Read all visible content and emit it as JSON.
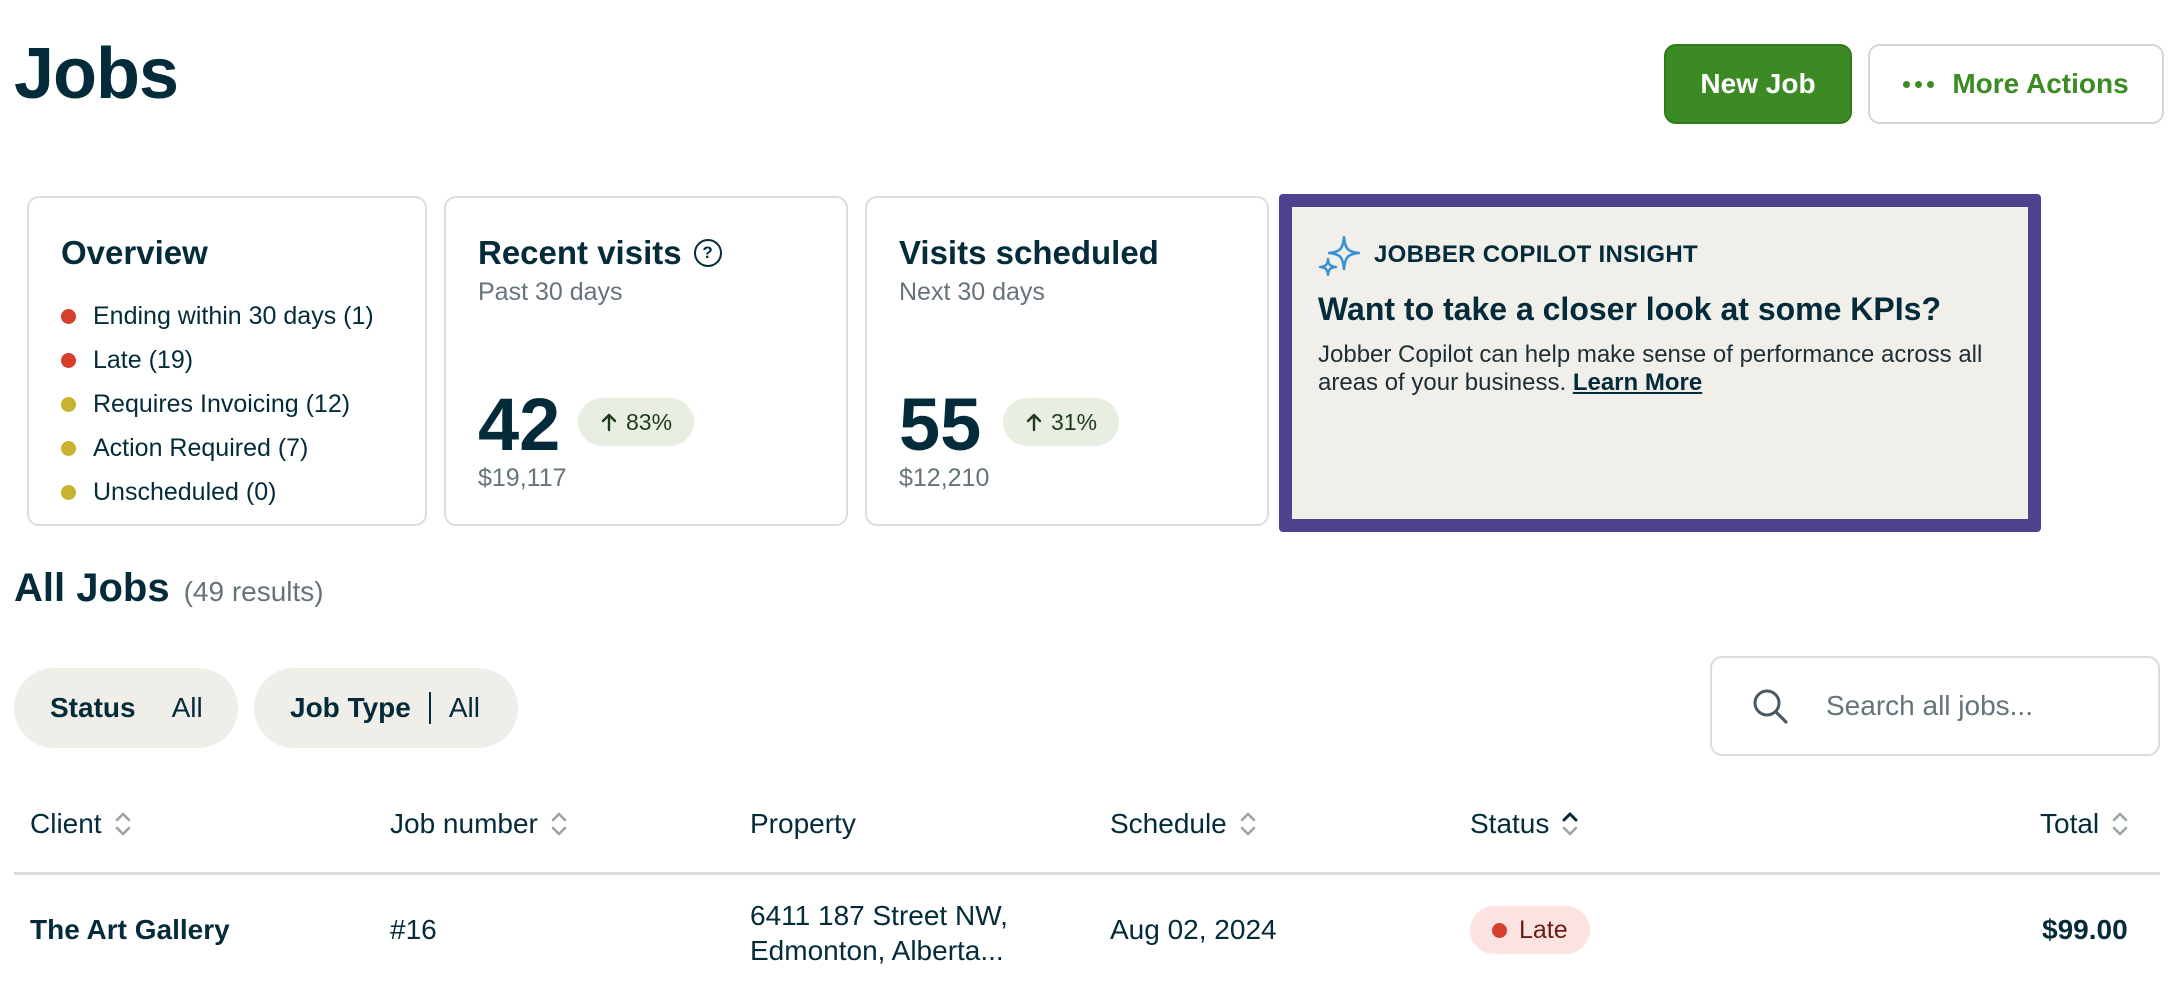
{
  "header": {
    "title": "Jobs",
    "new_job_label": "New Job",
    "more_actions_label": "More Actions"
  },
  "overview": {
    "title": "Overview",
    "items": [
      {
        "label": "Ending within 30 days (1)",
        "color": "#d63e2d"
      },
      {
        "label": "Late (19)",
        "color": "#d63e2d"
      },
      {
        "label": "Requires Invoicing (12)",
        "color": "#c9b22e"
      },
      {
        "label": "Action Required (7)",
        "color": "#c9b22e"
      },
      {
        "label": "Unscheduled (0)",
        "color": "#c9b22e"
      }
    ]
  },
  "recent_visits": {
    "title": "Recent visits",
    "subtitle": "Past 30 days",
    "count": "42",
    "trend": "83%",
    "amount": "$19,117"
  },
  "visits_scheduled": {
    "title": "Visits scheduled",
    "subtitle": "Next 30 days",
    "count": "55",
    "trend": "31%",
    "amount": "$12,210"
  },
  "copilot": {
    "label": "JOBBER COPILOT INSIGHT",
    "title": "Want to take a closer look at some KPIs?",
    "body": "Jobber Copilot can help make sense of performance across all areas of your business.",
    "link": "Learn More",
    "border_color": "#4f418d"
  },
  "all_jobs": {
    "title": "All Jobs",
    "results": "(49 results)"
  },
  "filters": {
    "status_label": "Status",
    "status_value": "All",
    "type_label": "Job Type",
    "type_value": "All"
  },
  "search": {
    "placeholder": "Search all jobs..."
  },
  "table": {
    "columns": {
      "client": "Client",
      "job_number": "Job number",
      "property": "Property",
      "schedule": "Schedule",
      "status": "Status",
      "total": "Total"
    },
    "rows": [
      {
        "client": "The Art Gallery",
        "job_number": "#16",
        "property_line1": "6411 187 Street NW,",
        "property_line2": "Edmonton, Alberta...",
        "schedule": "Aug 02, 2024",
        "status": "Late",
        "total": "$99.00"
      }
    ]
  },
  "colors": {
    "brand_green": "#3b8a24",
    "text_dark": "#032b3a",
    "late_red": "#d63e2d",
    "warning_yellow": "#c9b22e"
  }
}
